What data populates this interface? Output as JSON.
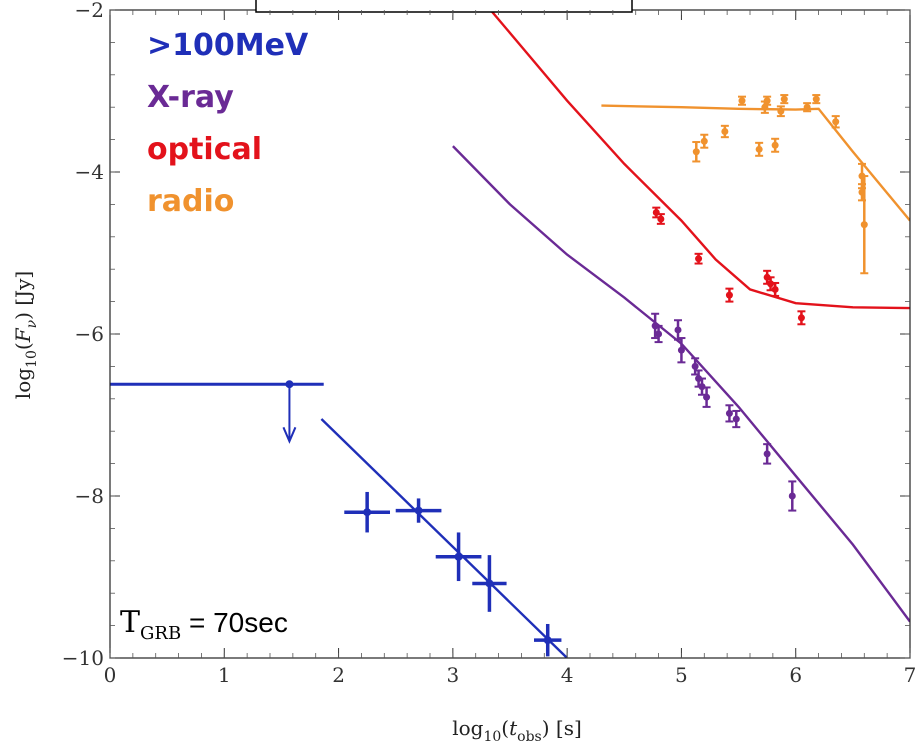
{
  "chart_data": {
    "type": "scatter",
    "title": "",
    "xlabel": "log10(t_obs) [s]",
    "ylabel": "log10(F_ν) [Jy]",
    "xlim": [
      0,
      7
    ],
    "ylim": [
      -10,
      -2
    ],
    "x_ticks": [
      0,
      1,
      2,
      3,
      4,
      5,
      6,
      7
    ],
    "y_ticks": [
      -10,
      -8,
      -6,
      -4,
      -2
    ],
    "grid": false,
    "legend": "top-left",
    "annotation": {
      "main": "T",
      "sub": "GRB",
      "value": " = 70sec"
    },
    "colors": {
      "gamma": "#1f2fb8",
      "xray": "#6a2a95",
      "optical": "#e3121b",
      "radio": "#f0922e"
    },
    "series": [
      {
        "name": ">100MeV",
        "color": "#1f2fb8",
        "points": [
          {
            "x": 2.25,
            "y": -8.2,
            "xerr": 0.2,
            "yerr": 0.25
          },
          {
            "x": 2.7,
            "y": -8.18,
            "xerr": 0.2,
            "yerr": 0.15
          },
          {
            "x": 3.05,
            "y": -8.75,
            "xerr": 0.2,
            "yerr": 0.3
          },
          {
            "x": 3.32,
            "y": -9.08,
            "xerr": 0.15,
            "yerr": 0.35
          },
          {
            "x": 3.83,
            "y": -9.78,
            "xerr": 0.12,
            "yerr": 0.2
          }
        ],
        "upper_limit": {
          "x": 1.57,
          "y": -6.62,
          "x_from": 0,
          "x_to": 1.87,
          "arrow_to": -7.3
        },
        "model": [
          [
            1.85,
            -7.05
          ],
          [
            4.0,
            -10.0
          ]
        ]
      },
      {
        "name": "X-ray",
        "color": "#6a2a95",
        "points": [
          {
            "x": 4.77,
            "y": -5.9,
            "yerr": 0.15
          },
          {
            "x": 4.8,
            "y": -6.0,
            "yerr": 0.1
          },
          {
            "x": 4.97,
            "y": -5.95,
            "yerr": 0.12
          },
          {
            "x": 5.0,
            "y": -6.2,
            "yerr": 0.15
          },
          {
            "x": 5.12,
            "y": -6.4,
            "yerr": 0.1
          },
          {
            "x": 5.15,
            "y": -6.55,
            "yerr": 0.1
          },
          {
            "x": 5.18,
            "y": -6.65,
            "yerr": 0.1
          },
          {
            "x": 5.22,
            "y": -6.78,
            "yerr": 0.12
          },
          {
            "x": 5.42,
            "y": -6.98,
            "yerr": 0.1
          },
          {
            "x": 5.48,
            "y": -7.05,
            "yerr": 0.1
          },
          {
            "x": 5.75,
            "y": -7.48,
            "yerr": 0.12
          },
          {
            "x": 5.97,
            "y": -8.0,
            "yerr": 0.18
          }
        ],
        "model": [
          [
            3.0,
            -3.68
          ],
          [
            3.5,
            -4.4
          ],
          [
            4.0,
            -5.02
          ],
          [
            4.5,
            -5.55
          ],
          [
            5.0,
            -6.12
          ],
          [
            5.5,
            -6.9
          ],
          [
            6.0,
            -7.75
          ],
          [
            6.5,
            -8.6
          ],
          [
            7.0,
            -9.55
          ]
        ]
      },
      {
        "name": "optical",
        "color": "#e3121b",
        "points": [
          {
            "x": 4.78,
            "y": -4.5,
            "yerr": 0.06
          },
          {
            "x": 4.82,
            "y": -4.58,
            "yerr": 0.06
          },
          {
            "x": 5.15,
            "y": -5.07,
            "yerr": 0.06
          },
          {
            "x": 5.42,
            "y": -5.52,
            "yerr": 0.08
          },
          {
            "x": 5.75,
            "y": -5.3,
            "yerr": 0.08
          },
          {
            "x": 5.78,
            "y": -5.38,
            "yerr": 0.08
          },
          {
            "x": 5.82,
            "y": -5.45,
            "yerr": 0.08
          },
          {
            "x": 6.05,
            "y": -5.8,
            "yerr": 0.08
          }
        ],
        "model": [
          [
            3.3,
            -1.95
          ],
          [
            3.6,
            -2.45
          ],
          [
            4.0,
            -3.12
          ],
          [
            4.5,
            -3.9
          ],
          [
            5.0,
            -4.6
          ],
          [
            5.3,
            -5.08
          ],
          [
            5.6,
            -5.45
          ],
          [
            6.0,
            -5.62
          ],
          [
            6.5,
            -5.67
          ],
          [
            7.0,
            -5.68
          ]
        ]
      },
      {
        "name": "radio",
        "color": "#f0922e",
        "points": [
          {
            "x": 5.13,
            "y": -3.75,
            "yerr": 0.12
          },
          {
            "x": 5.2,
            "y": -3.62,
            "yerr": 0.08
          },
          {
            "x": 5.38,
            "y": -3.5,
            "yerr": 0.07
          },
          {
            "x": 5.53,
            "y": -3.12,
            "yerr": 0.05
          },
          {
            "x": 5.68,
            "y": -3.72,
            "yerr": 0.08
          },
          {
            "x": 5.73,
            "y": -3.2,
            "yerr": 0.07
          },
          {
            "x": 5.75,
            "y": -3.12,
            "yerr": 0.05
          },
          {
            "x": 5.82,
            "y": -3.67,
            "yerr": 0.08
          },
          {
            "x": 5.87,
            "y": -3.25,
            "yerr": 0.06
          },
          {
            "x": 5.9,
            "y": -3.1,
            "yerr": 0.05
          },
          {
            "x": 6.1,
            "y": -3.2,
            "yerr": 0.05
          },
          {
            "x": 6.18,
            "y": -3.1,
            "yerr": 0.05
          },
          {
            "x": 6.35,
            "y": -3.38,
            "yerr": 0.07
          },
          {
            "x": 6.58,
            "y": -4.05,
            "yerr": 0.15
          },
          {
            "x": 6.58,
            "y": -4.25,
            "yerr": 0.1
          },
          {
            "x": 6.6,
            "y": -4.65,
            "yerr": 0.6
          }
        ],
        "model": [
          [
            4.3,
            -3.18
          ],
          [
            5.0,
            -3.2
          ],
          [
            5.5,
            -3.22
          ],
          [
            6.0,
            -3.23
          ],
          [
            6.2,
            -3.22
          ],
          [
            6.5,
            -3.75
          ],
          [
            7.0,
            -4.6
          ]
        ]
      }
    ]
  }
}
